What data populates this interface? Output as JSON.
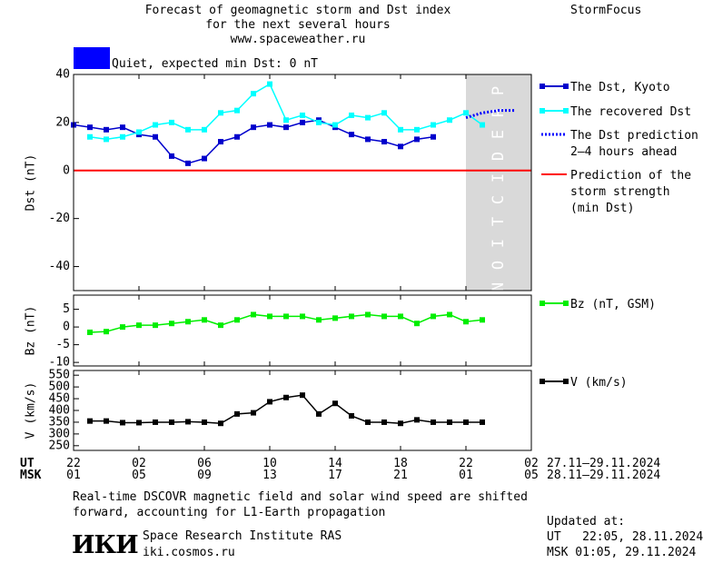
{
  "header": {
    "title_line1": "Forecast of geomagnetic storm and Dst index",
    "title_line2": "for the next several hours",
    "title_line3": "www.spaceweather.ru",
    "brand": "StormFocus",
    "status_label": "Quiet, expected min Dst: 0 nT",
    "status_color": "#0000ff"
  },
  "time_axis": {
    "ut_label": "UT",
    "msk_label": "MSK",
    "ut_ticks": [
      "22",
      "02",
      "06",
      "10",
      "14",
      "18",
      "22",
      "02"
    ],
    "msk_ticks": [
      "01",
      "05",
      "09",
      "13",
      "17",
      "21",
      "01",
      "05"
    ],
    "ut_range": "27.11–29.11.2024",
    "msk_range": "28.11–29.11.2024"
  },
  "footer": {
    "note_line1": "Real-time DSCOVR magnetic field and solar wind speed are shifted",
    "note_line2": "forward, accounting for L1-Earth propagation",
    "logo_text": "ИКИ",
    "institute": "Space Research Institute RAS",
    "site": "iki.cosmos.ru",
    "updated_label": "Updated at:",
    "updated_ut": "UT   22:05, 28.11.2024",
    "updated_msk": "MSK 01:05, 29.11.2024"
  },
  "chart_data": [
    {
      "type": "line",
      "ylabel": "Dst (nT)",
      "ylim": [
        -50,
        40
      ],
      "yticks": [
        40,
        20,
        0,
        -20,
        -40
      ],
      "xlim": [
        0,
        28
      ],
      "prediction_label": "PREDICTION",
      "prediction_region": [
        24,
        28
      ],
      "legend_position": "right",
      "series": [
        {
          "name": "The Dst, Kyoto",
          "color": "#0000cc",
          "x": [
            0,
            1,
            2,
            3,
            4,
            5,
            6,
            7,
            8,
            9,
            10,
            11,
            12,
            13,
            14,
            15,
            16,
            17,
            18,
            19,
            20,
            21,
            22
          ],
          "values": [
            19,
            18,
            17,
            18,
            15,
            14,
            6,
            3,
            5,
            12,
            14,
            18,
            19,
            18,
            20,
            21,
            18,
            15,
            13,
            12,
            10,
            13,
            14
          ]
        },
        {
          "name": "The recovered Dst",
          "color": "#00ffff",
          "x": [
            1,
            2,
            3,
            4,
            5,
            6,
            7,
            8,
            9,
            10,
            11,
            12,
            13,
            14,
            15,
            16,
            17,
            18,
            19,
            20,
            21,
            22,
            23,
            24,
            25
          ],
          "values": [
            14,
            13,
            14,
            16,
            19,
            20,
            17,
            17,
            24,
            25,
            32,
            36,
            21,
            23,
            20,
            19,
            23,
            22,
            24,
            17,
            17,
            19,
            21,
            24,
            19
          ]
        },
        {
          "name": "The Dst prediction\n2–4 hours ahead",
          "color": "#0000ff",
          "x": [
            24,
            25,
            26,
            27
          ],
          "values": [
            22,
            24,
            25,
            25
          ]
        },
        {
          "name": "Prediction of the\nstorm strength\n(min Dst)",
          "color": "#ff0000",
          "x": [
            0,
            28
          ],
          "values": [
            0,
            0
          ]
        }
      ]
    },
    {
      "type": "line",
      "ylabel": "Bz (nT)",
      "ylim": [
        -11,
        9
      ],
      "yticks": [
        5,
        0,
        -5,
        -10
      ],
      "legend_position": "right",
      "series": [
        {
          "name": "Bz (nT, GSM)",
          "color": "#00ee00",
          "x": [
            1,
            2,
            3,
            4,
            5,
            6,
            7,
            8,
            9,
            10,
            11,
            12,
            13,
            14,
            15,
            16,
            17,
            18,
            19,
            20,
            21,
            22,
            23,
            24,
            25
          ],
          "values": [
            -1.5,
            -1.3,
            0,
            0.5,
            0.5,
            1,
            1.5,
            2,
            0.5,
            2,
            3.5,
            3,
            3,
            3,
            2,
            2.5,
            3,
            3.5,
            3,
            3,
            1,
            3,
            3.5,
            1.5,
            2
          ]
        }
      ]
    },
    {
      "type": "line",
      "ylabel": "V (km/s)",
      "ylim": [
        230,
        570
      ],
      "yticks": [
        250,
        300,
        350,
        400,
        450,
        500,
        550
      ],
      "legend_position": "right",
      "series": [
        {
          "name": "V (km/s)",
          "color": "#000000",
          "x": [
            1,
            2,
            3,
            4,
            5,
            6,
            7,
            8,
            9,
            10,
            11,
            12,
            13,
            14,
            15,
            16,
            17,
            18,
            19,
            20,
            21,
            22,
            23,
            24,
            25
          ],
          "values": [
            355,
            355,
            348,
            348,
            350,
            350,
            352,
            350,
            345,
            385,
            390,
            437,
            455,
            465,
            385,
            430,
            377,
            350,
            350,
            345,
            360,
            350,
            350,
            350,
            350
          ]
        }
      ]
    }
  ]
}
